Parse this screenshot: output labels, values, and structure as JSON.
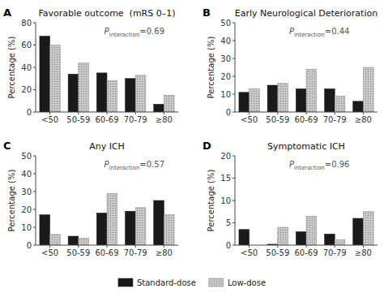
{
  "chart_data": [
    {
      "type": "bar",
      "title": "Favorable outcome  (mRS 0–1)",
      "categories": [
        "<50",
        "50-59",
        "60-69",
        "70-79",
        "≥80"
      ],
      "series": [
        {
          "name": "Standard-dose",
          "color": "#1a1a1a",
          "values": [
            68,
            34,
            35,
            30,
            7
          ]
        },
        {
          "name": "Low-dose",
          "color": "#c8c8c8",
          "values": [
            60,
            44,
            28,
            33,
            15
          ]
        }
      ],
      "ylabel": "Percentage (%)",
      "ylim": [
        0,
        80
      ],
      "yticks": [
        0,
        20,
        40,
        60,
        80
      ],
      "annotations": [
        "A",
        "Pinteraction=0.69"
      ],
      "legend": "bottom"
    },
    {
      "type": "bar",
      "title": "Early Neurological Deterioration",
      "categories": [
        "<50",
        "50-59",
        "60-69",
        "70-79",
        "≥80"
      ],
      "series": [
        {
          "name": "Standard-dose",
          "color": "#1a1a1a",
          "values": [
            11,
            15,
            13,
            13,
            6
          ]
        },
        {
          "name": "Low-dose",
          "color": "#c8c8c8",
          "values": [
            13,
            16,
            24,
            9,
            25
          ]
        }
      ],
      "ylabel": "Percentage (%)",
      "ylim": [
        0,
        50
      ],
      "yticks": [
        0,
        10,
        20,
        30,
        40,
        50
      ],
      "annotations": [
        "B",
        "Pinteraction=0.44"
      ]
    },
    {
      "type": "bar",
      "title": "Any ICH",
      "categories": [
        "<50",
        "50-59",
        "60-69",
        "70-79",
        "≥80"
      ],
      "series": [
        {
          "name": "Standard-dose",
          "color": "#1a1a1a",
          "values": [
            17,
            5,
            18,
            19,
            25
          ]
        },
        {
          "name": "Low-dose",
          "color": "#c8c8c8",
          "values": [
            6,
            4,
            29,
            21,
            17
          ]
        }
      ],
      "ylabel": "Percentage (%)",
      "ylim": [
        0,
        50
      ],
      "yticks": [
        0,
        10,
        20,
        30,
        40,
        50
      ],
      "annotations": [
        "C",
        "Pinteraction=0.57"
      ]
    },
    {
      "type": "bar",
      "title": "Symptomatic ICH",
      "categories": [
        "<50",
        "50-59",
        "60-69",
        "70-79",
        "≥80"
      ],
      "series": [
        {
          "name": "Standard-dose",
          "color": "#1a1a1a",
          "values": [
            3.5,
            0.2,
            3,
            2.5,
            6
          ]
        },
        {
          "name": "Low-dose",
          "color": "#c8c8c8",
          "values": [
            0,
            4,
            6.5,
            1.2,
            7.5
          ]
        }
      ],
      "ylabel": "Percentage (%)",
      "ylim": [
        0,
        20
      ],
      "yticks": [
        0,
        5,
        10,
        15,
        20
      ],
      "annotations": [
        "D",
        "Pinteraction=0.96"
      ]
    }
  ]
}
